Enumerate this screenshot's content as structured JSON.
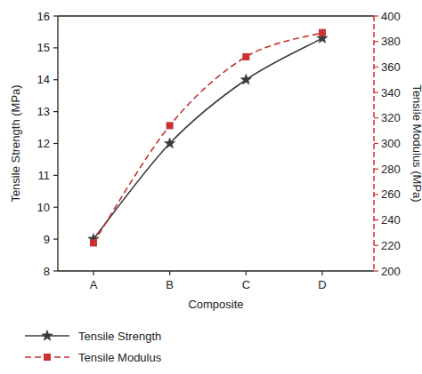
{
  "chart_data": {
    "type": "line",
    "x_label": "Composite",
    "y_label": "Tensile Strength (MPa)",
    "y2_label": "Tensile Modulus (MPa)",
    "categories": [
      "A",
      "B",
      "C",
      "D"
    ],
    "series": [
      {
        "name": "Tensile Strength",
        "color": "#3c3c3c",
        "marker": "star",
        "line_style": "solid",
        "values": [
          9.0,
          12.0,
          14.0,
          15.3
        ]
      },
      {
        "name": "Tensile Modulus",
        "color": "#c83232",
        "marker": "square",
        "line_style": "dashed",
        "axis": "y2",
        "values": [
          222,
          314,
          368,
          387
        ]
      }
    ],
    "ylim": [
      8,
      16
    ],
    "yticks": [
      8,
      9,
      10,
      11,
      12,
      13,
      14,
      15,
      16
    ],
    "y2lim": [
      200,
      400
    ],
    "y2ticks": [
      200,
      220,
      240,
      260,
      280,
      300,
      320,
      340,
      360,
      380,
      400
    ],
    "legend": "bottom"
  }
}
